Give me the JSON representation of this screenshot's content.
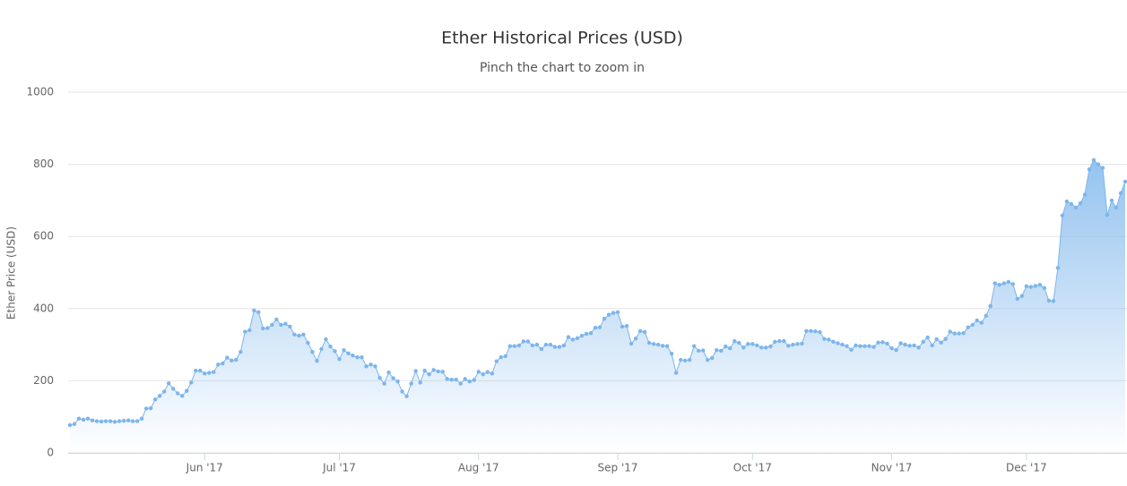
{
  "chart_data": {
    "type": "area",
    "title": "Ether Historical Prices (USD)",
    "subtitle": "Pinch the chart to zoom in",
    "y_label": "Ether Price (USD)",
    "color": "#7cb5ec",
    "grid": true,
    "ylim": [
      0,
      1000
    ],
    "yticks": [
      0,
      200,
      400,
      600,
      800,
      1000
    ],
    "categories": [
      null,
      null,
      null,
      null,
      null,
      null,
      null,
      null,
      null,
      null,
      null,
      null,
      null,
      null,
      null,
      null,
      null,
      null,
      null,
      null,
      null,
      null,
      null,
      null,
      null,
      null,
      null,
      null,
      null,
      null,
      "Jun '17",
      null,
      null,
      null,
      null,
      null,
      null,
      null,
      null,
      null,
      null,
      null,
      null,
      null,
      null,
      null,
      null,
      null,
      null,
      null,
      null,
      null,
      null,
      null,
      null,
      null,
      null,
      null,
      null,
      null,
      "Jul '17",
      null,
      null,
      null,
      null,
      null,
      null,
      null,
      null,
      null,
      null,
      null,
      null,
      null,
      null,
      null,
      null,
      null,
      null,
      null,
      null,
      null,
      null,
      null,
      null,
      null,
      null,
      null,
      null,
      null,
      null,
      "Aug '17",
      null,
      null,
      null,
      null,
      null,
      null,
      null,
      null,
      null,
      null,
      null,
      null,
      null,
      null,
      null,
      null,
      null,
      null,
      null,
      null,
      null,
      null,
      null,
      null,
      null,
      null,
      null,
      null,
      null,
      null,
      "Sep '17",
      null,
      null,
      null,
      null,
      null,
      null,
      null,
      null,
      null,
      null,
      null,
      null,
      null,
      null,
      null,
      null,
      null,
      null,
      null,
      null,
      null,
      null,
      null,
      null,
      null,
      null,
      null,
      null,
      null,
      "Oct '17",
      null,
      null,
      null,
      null,
      null,
      null,
      null,
      null,
      null,
      null,
      null,
      null,
      null,
      null,
      null,
      null,
      null,
      null,
      null,
      null,
      null,
      null,
      null,
      null,
      null,
      null,
      null,
      null,
      null,
      null,
      "Nov '17",
      null,
      null,
      null,
      null,
      null,
      null,
      null,
      null,
      null,
      null,
      null,
      null,
      null,
      null,
      null,
      null,
      null,
      null,
      null,
      null,
      null,
      null,
      null,
      null,
      null,
      null,
      null,
      null,
      null,
      "Dec '17",
      null,
      null,
      null,
      null,
      null,
      null,
      null,
      null,
      null,
      null,
      null,
      null,
      null,
      null,
      null,
      null,
      null,
      null,
      null,
      null,
      null,
      null
    ],
    "values": [
      77,
      80,
      95,
      92,
      95,
      90,
      88,
      87,
      88,
      88,
      86,
      88,
      89,
      90,
      88,
      88,
      95,
      123,
      124,
      148,
      158,
      170,
      193,
      178,
      165,
      158,
      172,
      195,
      228,
      228,
      220,
      222,
      224,
      245,
      248,
      264,
      256,
      258,
      280,
      336,
      340,
      395,
      390,
      345,
      346,
      355,
      370,
      355,
      358,
      350,
      328,
      325,
      328,
      305,
      280,
      255,
      288,
      315,
      295,
      282,
      260,
      285,
      276,
      270,
      265,
      265,
      240,
      245,
      240,
      208,
      192,
      223,
      207,
      198,
      170,
      157,
      192,
      227,
      195,
      228,
      218,
      230,
      226,
      225,
      205,
      203,
      203,
      192,
      205,
      198,
      202,
      225,
      218,
      224,
      220,
      254,
      265,
      268,
      296,
      296,
      298,
      309,
      309,
      298,
      300,
      288,
      300,
      300,
      294,
      294,
      298,
      321,
      314,
      318,
      325,
      330,
      332,
      347,
      348,
      372,
      383,
      388,
      390,
      350,
      352,
      303,
      317,
      338,
      335,
      305,
      302,
      300,
      297,
      296,
      275,
      222,
      258,
      256,
      258,
      296,
      283,
      284,
      258,
      263,
      285,
      283,
      295,
      290,
      310,
      305,
      292,
      302,
      302,
      298,
      292,
      292,
      295,
      308,
      310,
      310,
      297,
      300,
      302,
      303,
      338,
      338,
      337,
      335,
      316,
      314,
      308,
      304,
      300,
      296,
      286,
      298,
      296,
      296,
      296,
      294,
      306,
      307,
      303,
      290,
      285,
      304,
      300,
      297,
      298,
      292,
      308,
      320,
      298,
      315,
      306,
      316,
      336,
      331,
      331,
      332,
      348,
      355,
      367,
      361,
      380,
      407,
      470,
      466,
      470,
      474,
      468,
      427,
      435,
      462,
      460,
      463,
      466,
      457,
      422,
      421,
      513,
      658,
      697,
      690,
      680,
      692,
      716,
      786,
      812,
      800,
      790,
      660,
      700,
      680,
      720,
      752
    ]
  }
}
